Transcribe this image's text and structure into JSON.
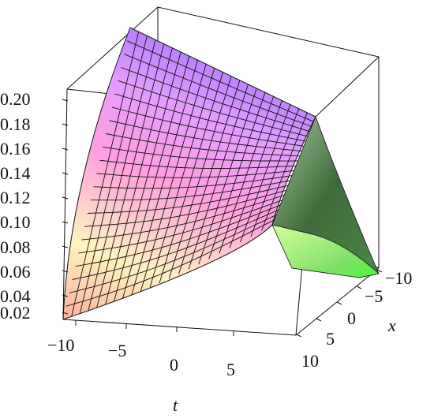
{
  "chart_data": {
    "type": "surface3d",
    "title": "",
    "xlabel": "t",
    "ylabel": "x",
    "zlabel": "",
    "t_range": [
      -10,
      10
    ],
    "x_range": [
      -10,
      10
    ],
    "z_range": [
      0.02,
      0.2
    ],
    "t_ticks": [
      "−10",
      "−5",
      "0",
      "5"
    ],
    "x_ticks": [
      "−10",
      "−5",
      "0",
      "5",
      "10"
    ],
    "z_ticks": [
      "0.02",
      "0.04",
      "0.06",
      "0.08",
      "0.10",
      "0.12",
      "0.14",
      "0.16",
      "0.18",
      "0.20"
    ],
    "surface_samples": {
      "t_values": [
        -10,
        -5,
        0,
        5,
        10
      ],
      "edge_x10": [
        0.02,
        0.05,
        0.1,
        0.15,
        0.2
      ],
      "edge_x_minus10": [
        0.2,
        0.2,
        0.2,
        0.2,
        0.2
      ]
    },
    "colormap": [
      "#ff6a6a",
      "#ffff99",
      "#dd88ff",
      "#3a6a3a",
      "#66ff44"
    ],
    "box": true,
    "grid": false
  }
}
